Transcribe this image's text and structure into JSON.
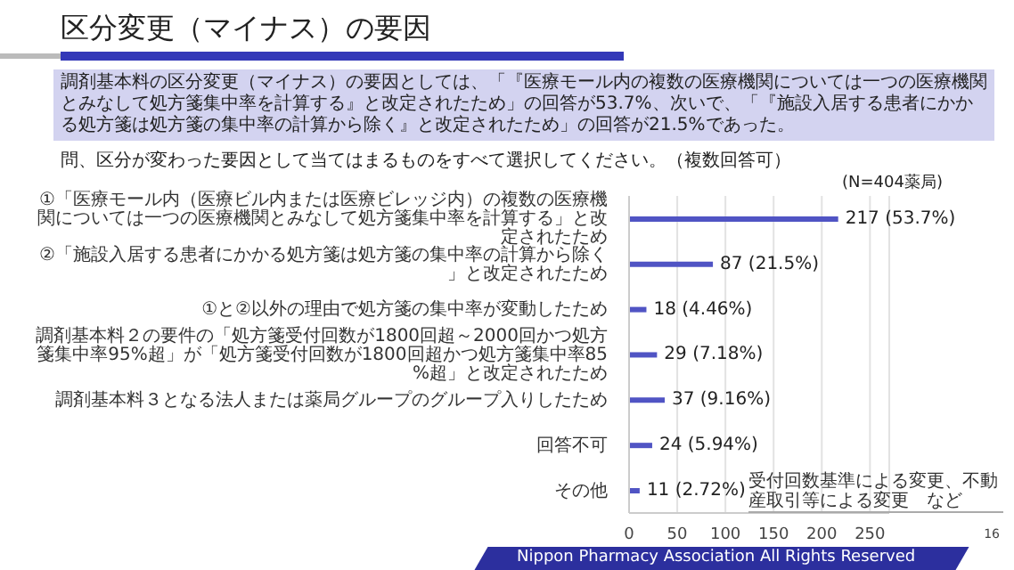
{
  "chart_data": {
    "type": "bar",
    "orientation": "horizontal",
    "title": "区分変更（マイナス）の要因",
    "subtitle": "調剤基本料の区分変更（マイナス）の要因としては、「『医療モール内の複数の医療機関については一つの医療機関とみなして処方箋集中率を計算する』と改定されたため」の回答が53.7%、次いで、「『施設入居する患者にかかる処方箋は処方箋の集中率の計算から除く』と改定されたため」の回答が21.5%であった。",
    "annotations": [
      "問、区分が変わった要因として当てはまるものをすべて選択してください。（複数回答可）",
      "(N=404薬局)",
      "受付回数基準による変更、不動産取引等による変更　など",
      "Nippon Pharmacy Association All Rights Reserved",
      "16"
    ],
    "categories": [
      "①「医療モール内（医療ビル内または医療ビレッジ内）の複数の医療機関については一つの医療機関とみなして処方箋集中率を計算する」と改定されたため",
      "②「施設入居する患者にかかる処方箋は処方箋の集中率の計算から除く」と改定されたため",
      "①と②以外の理由で処方箋の集中率が変動したため",
      "調剤基本料２の要件の「処方箋受付回数が1800回超～2000回かつ処方箋集中率95%超」が「処方箋受付回数が1800回超かつ処方箋集中率85%超」と改定されたため",
      "調剤基本料３となる法人または薬局グループのグループ入りしたため",
      "回答不可",
      "その他"
    ],
    "values": [
      217,
      87,
      18,
      29,
      37,
      24,
      11
    ],
    "value_labels": [
      "217 (53.7%)",
      "87 (21.5%)",
      "18 (4.46%)",
      "29 (7.18%)",
      "37 (9.16%)",
      "24 (5.94%)",
      "11 (2.72%)"
    ],
    "color": "#5054c4",
    "xlim": [
      0,
      270
    ],
    "xticks": [
      0,
      50,
      100,
      150,
      200,
      250
    ],
    "grid": "x"
  }
}
